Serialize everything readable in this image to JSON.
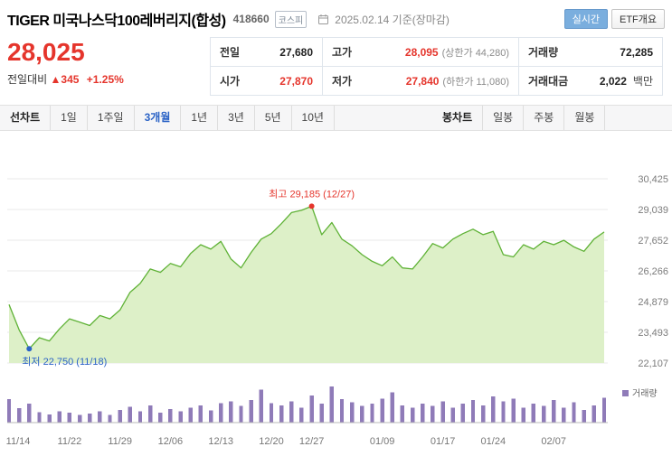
{
  "header": {
    "title": "TIGER 미국나스닥100레버리지(합성)",
    "code": "418660",
    "market_badge": "코스피",
    "date_info": "2025.02.14 기준(장마감)",
    "realtime_badge": "실시간",
    "etf_button": "ETF개요"
  },
  "price": {
    "current": "28,025",
    "change_label": "전일대비",
    "change_arrow": "▲",
    "change_value": "345",
    "change_percent": "+1.25%"
  },
  "summary": {
    "r0c0": {
      "label": "전일",
      "value": "27,680"
    },
    "r0c1": {
      "label": "고가",
      "value": "28,095",
      "sub": "(상한가 44,280)"
    },
    "r0c2": {
      "label": "거래량",
      "value": "72,285"
    },
    "r1c0": {
      "label": "시가",
      "value": "27,870"
    },
    "r1c1": {
      "label": "저가",
      "value": "27,840",
      "sub": "(하한가 11,080)"
    },
    "r1c2": {
      "label": "거래대금",
      "value": "2,022",
      "unit": "백만"
    }
  },
  "tabs": {
    "line_header": "선차트",
    "line_items": [
      "1일",
      "1주일",
      "3개월",
      "1년",
      "3년",
      "5년",
      "10년"
    ],
    "active_item": "3개월",
    "candle_header": "봉차트",
    "candle_items": [
      "일봉",
      "주봉",
      "월봉"
    ]
  },
  "annotations": {
    "high": {
      "text": "최고 29,185 (12/27)",
      "index": 30,
      "value": 29185,
      "color": "#e5352c"
    },
    "low": {
      "text": "최저 22,750 (11/18)",
      "index": 2,
      "value": 22750,
      "color": "#2b63c6"
    }
  },
  "chart_data": {
    "type": "area",
    "title": "TIGER 미국나스닥100레버리지(합성) 3개월 가격 차트",
    "x": [
      "11/14",
      "11/15",
      "11/18",
      "11/19",
      "11/20",
      "11/21",
      "11/22",
      "11/25",
      "11/26",
      "11/27",
      "11/28",
      "11/29",
      "12/02",
      "12/03",
      "12/04",
      "12/05",
      "12/06",
      "12/09",
      "12/10",
      "12/11",
      "12/12",
      "12/13",
      "12/16",
      "12/17",
      "12/18",
      "12/19",
      "12/20",
      "12/23",
      "12/24",
      "12/26",
      "12/27",
      "12/30",
      "01/02",
      "01/03",
      "01/06",
      "01/07",
      "01/08",
      "01/09",
      "01/10",
      "01/13",
      "01/14",
      "01/15",
      "01/16",
      "01/17",
      "01/20",
      "01/21",
      "01/22",
      "01/23",
      "01/24",
      "01/31",
      "02/03",
      "02/04",
      "02/05",
      "02/06",
      "02/07",
      "02/10",
      "02/11",
      "02/12",
      "02/13",
      "02/14"
    ],
    "values": [
      24750,
      23600,
      22750,
      23250,
      23100,
      23650,
      24100,
      23950,
      23800,
      24250,
      24100,
      24500,
      25300,
      25700,
      26350,
      26200,
      26600,
      26450,
      27050,
      27450,
      27250,
      27600,
      26800,
      26400,
      27100,
      27700,
      27950,
      28400,
      28900,
      29000,
      29185,
      27900,
      28450,
      27700,
      27400,
      27000,
      26700,
      26500,
      26900,
      26400,
      26350,
      26900,
      27500,
      27300,
      27700,
      27950,
      28150,
      27900,
      28050,
      27000,
      26900,
      27450,
      27250,
      27600,
      27450,
      27650,
      27350,
      27150,
      27700,
      28025
    ],
    "volume": [
      62,
      38,
      50,
      28,
      22,
      30,
      26,
      20,
      24,
      30,
      20,
      34,
      42,
      30,
      46,
      26,
      36,
      30,
      40,
      46,
      32,
      52,
      56,
      44,
      60,
      88,
      52,
      46,
      56,
      40,
      72,
      50,
      96,
      62,
      54,
      44,
      50,
      64,
      80,
      46,
      40,
      50,
      44,
      56,
      40,
      50,
      60,
      46,
      70,
      56,
      64,
      40,
      50,
      44,
      60,
      40,
      54,
      34,
      46,
      66
    ],
    "ylim": [
      22107,
      30425
    ],
    "y_ticks": [
      30425,
      29039,
      27652,
      26266,
      24879,
      23493,
      22107
    ],
    "y_tick_labels": [
      "30,425",
      "29,039",
      "27,652",
      "26,266",
      "24,879",
      "23,493",
      "22,107"
    ],
    "x_tick_labels": [
      "11/14",
      "11/22",
      "11/29",
      "12/06",
      "12/13",
      "12/20",
      "12/27",
      "01/09",
      "01/17",
      "01/24",
      "02/07"
    ],
    "x_tick_indices": [
      0,
      6,
      11,
      16,
      21,
      26,
      30,
      37,
      43,
      48,
      54
    ],
    "grid": true,
    "legend_position": "right",
    "volume_legend": "거래량",
    "line_color": "#5fb236",
    "fill_color": "#ddf0c8",
    "volume_color": "#8f7bb8"
  }
}
